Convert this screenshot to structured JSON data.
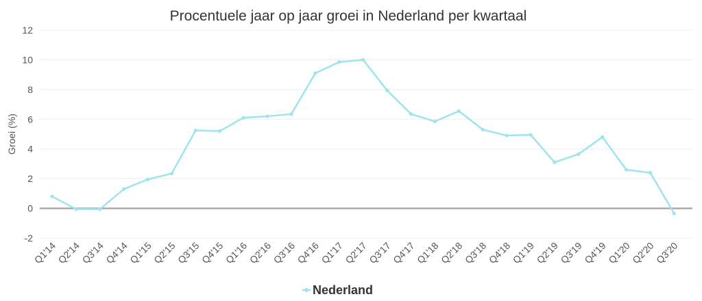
{
  "chart_data": {
    "type": "line",
    "title": "Procentuele jaar op jaar groei in Nederland per kwartaal",
    "ylabel": "Groei (%)",
    "xlabel": "",
    "ylim": [
      -2,
      12
    ],
    "yticks": [
      -2,
      0,
      2,
      4,
      6,
      8,
      10,
      12
    ],
    "grid": true,
    "legend_position": "bottom-center",
    "categories": [
      "Q1'14",
      "Q2'14",
      "Q3'14",
      "Q4'14",
      "Q1'15",
      "Q2'15",
      "Q3'15",
      "Q4'15",
      "Q1'16",
      "Q2'16",
      "Q3'16",
      "Q4'16",
      "Q1'17",
      "Q2'17",
      "Q3'17",
      "Q4'17",
      "Q1'18",
      "Q2'18",
      "Q3'18",
      "Q4'18",
      "Q1'19",
      "Q2'19",
      "Q3'19",
      "Q4'19",
      "Q1'20",
      "Q2'20",
      "Q3'20"
    ],
    "series": [
      {
        "name": "Nederland",
        "color": "#9ee4ec",
        "values": [
          0.8,
          -0.05,
          -0.05,
          1.3,
          1.95,
          2.35,
          5.25,
          5.2,
          6.1,
          6.2,
          6.35,
          9.1,
          9.85,
          10.0,
          7.95,
          6.35,
          5.85,
          6.55,
          5.3,
          4.9,
          4.95,
          3.1,
          3.65,
          4.8,
          2.6,
          2.4,
          -0.35
        ]
      }
    ],
    "colors": {
      "zero_line": "#aaaaaa",
      "grid": "#eeeeee"
    }
  }
}
